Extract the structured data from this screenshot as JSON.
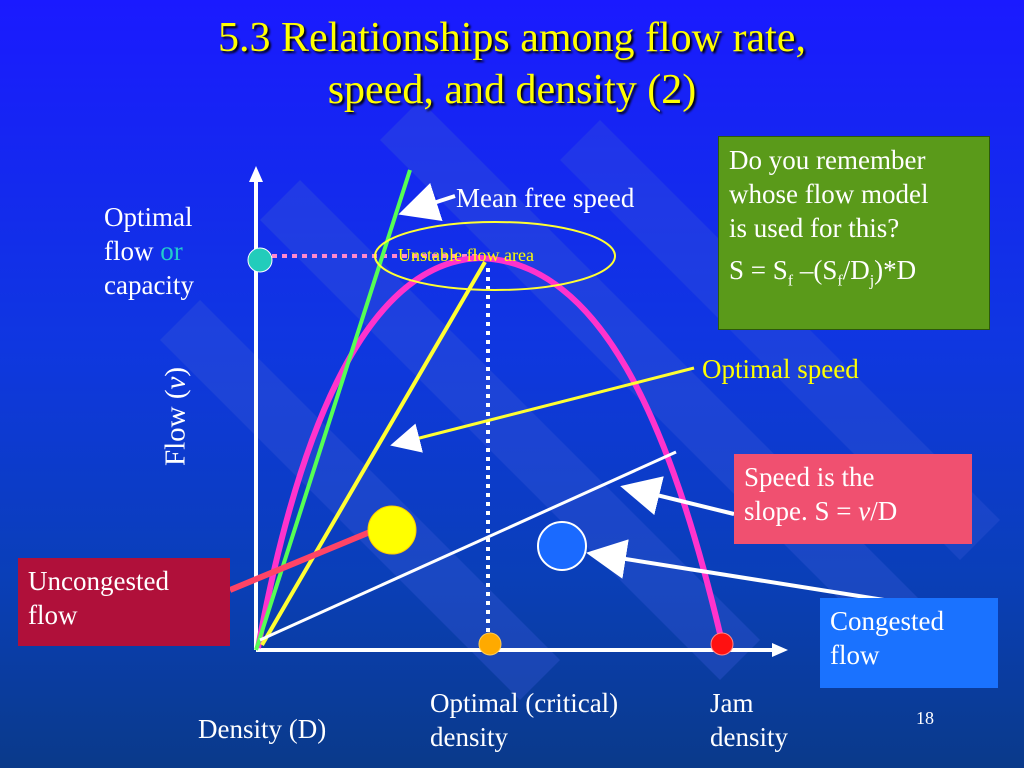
{
  "title_line1": "5.3 Relationships among flow rate,",
  "title_line2": "speed, and density (2)",
  "labels": {
    "optimal_flow_1": "Optimal",
    "optimal_flow_2": "flow",
    "optimal_flow_or": "or",
    "optimal_flow_3": "capacity",
    "flow_axis": "Flow (",
    "flow_axis_var": "v",
    "flow_axis_close": ")",
    "mean_free_speed": "Mean free speed",
    "unstable_flow_area": "Unstable flow area",
    "optimal_speed": "Optimal speed",
    "density_axis": "Density (D)",
    "optimal_density_1": "Optimal (critical)",
    "optimal_density_2": "density",
    "jam_density_1": "Jam",
    "jam_density_2": "density",
    "page_number": "18"
  },
  "boxes": {
    "remember_1": "Do you remember",
    "remember_2": "whose flow model",
    "remember_3": "is used for this?",
    "formula_S": "S = S",
    "formula_f": "f",
    "formula_mid": " –(S",
    "formula_f2": "f",
    "formula_D": "/D",
    "formula_j": "j",
    "formula_end": ")*D",
    "slope_1": "Speed is the",
    "slope_2": "slope. S = ",
    "slope_v": "v",
    "slope_3": "/D",
    "uncongested_1": "Uncongested",
    "uncongested_2": "flow",
    "congested_1": "Congested",
    "congested_2": "flow"
  },
  "colors": {
    "title": "#ffff00",
    "curve": "#ff33cc",
    "free_speed_line": "#55ff55",
    "optimal_speed_line": "#ffff33",
    "arrow": "#ffffff"
  }
}
